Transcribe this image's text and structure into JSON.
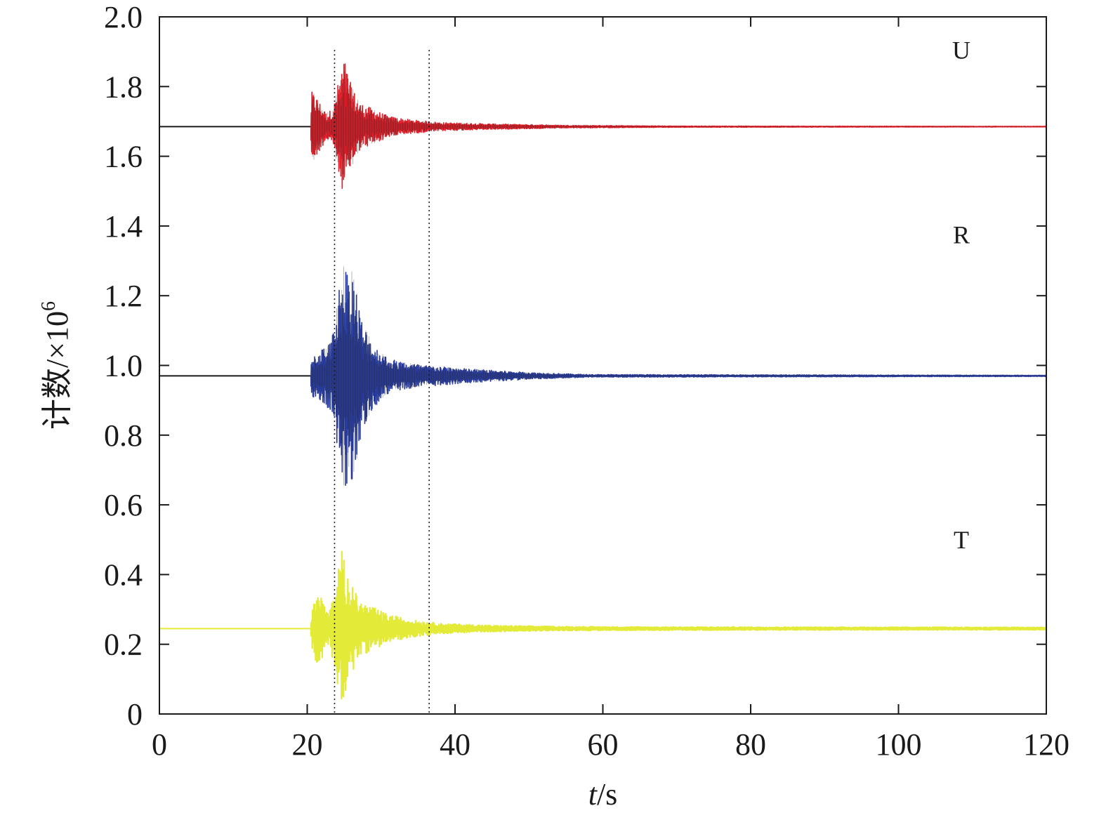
{
  "chart_data": {
    "type": "line",
    "xlabel_italic": "t",
    "xlabel_unit": "/s",
    "ylabel_prefix": "计数/×10",
    "ylabel_exp": "6",
    "xlim": [
      0,
      120
    ],
    "ylim": [
      0,
      2.0
    ],
    "xticks": [
      0,
      20,
      40,
      60,
      80,
      100,
      120
    ],
    "xtick_labels": [
      "0",
      "20",
      "40",
      "60",
      "80",
      "100",
      "120"
    ],
    "yticks": [
      0,
      0.2,
      0.4,
      0.6,
      0.8,
      1.0,
      1.2,
      1.4,
      1.6,
      1.8,
      2.0
    ],
    "ytick_labels": [
      "0",
      "0.2",
      "0.4",
      "0.6",
      "0.8",
      "1.0",
      "1.2",
      "1.4",
      "1.6",
      "1.8",
      "2.0"
    ],
    "grid": false,
    "markers": [
      23.7,
      36.5
    ],
    "series": [
      {
        "name": "U",
        "color": "#e0202a",
        "baseline": 1.685,
        "onset": 20.5,
        "label_x": 108.5,
        "label_y": 1.88,
        "envelope": [
          [
            0,
            0
          ],
          [
            20.4,
            0
          ],
          [
            20.6,
            0.1
          ],
          [
            21.2,
            0.09
          ],
          [
            22.5,
            0.04
          ],
          [
            23.5,
            0.05
          ],
          [
            24.4,
            0.15
          ],
          [
            25.0,
            0.2
          ],
          [
            25.8,
            0.13
          ],
          [
            27.0,
            0.07
          ],
          [
            29.0,
            0.05
          ],
          [
            31.0,
            0.03
          ],
          [
            34.0,
            0.02
          ],
          [
            38.0,
            0.012
          ],
          [
            45.0,
            0.008
          ],
          [
            55.0,
            0.004
          ],
          [
            70.0,
            0.002
          ],
          [
            120,
            0.001
          ]
        ]
      },
      {
        "name": "R",
        "color": "#2a3d9e",
        "baseline": 0.97,
        "onset": 20.5,
        "label_x": 108.5,
        "label_y": 1.35,
        "envelope": [
          [
            0,
            0
          ],
          [
            20.4,
            0
          ],
          [
            20.6,
            0.06
          ],
          [
            22.0,
            0.08
          ],
          [
            23.3,
            0.1
          ],
          [
            24.2,
            0.25
          ],
          [
            25.0,
            0.32
          ],
          [
            26.2,
            0.3
          ],
          [
            27.5,
            0.15
          ],
          [
            29.0,
            0.09
          ],
          [
            31.0,
            0.05
          ],
          [
            33.0,
            0.04
          ],
          [
            36.0,
            0.03
          ],
          [
            42.0,
            0.02
          ],
          [
            50.0,
            0.01
          ],
          [
            58.0,
            0.004
          ],
          [
            120,
            0.002
          ]
        ]
      },
      {
        "name": "T",
        "color": "#e4ea38",
        "baseline": 0.245,
        "onset": 20.5,
        "label_x": 108.5,
        "label_y": 0.475,
        "envelope": [
          [
            0,
            0.003
          ],
          [
            20.4,
            0.003
          ],
          [
            20.8,
            0.09
          ],
          [
            21.6,
            0.1
          ],
          [
            23.0,
            0.05
          ],
          [
            23.8,
            0.12
          ],
          [
            24.6,
            0.23
          ],
          [
            25.8,
            0.14
          ],
          [
            27.0,
            0.08
          ],
          [
            29.0,
            0.06
          ],
          [
            31.0,
            0.04
          ],
          [
            34.0,
            0.025
          ],
          [
            38.0,
            0.015
          ],
          [
            45.0,
            0.009
          ],
          [
            55.0,
            0.006
          ],
          [
            65.0,
            0.005
          ],
          [
            120,
            0.004
          ]
        ]
      }
    ]
  }
}
